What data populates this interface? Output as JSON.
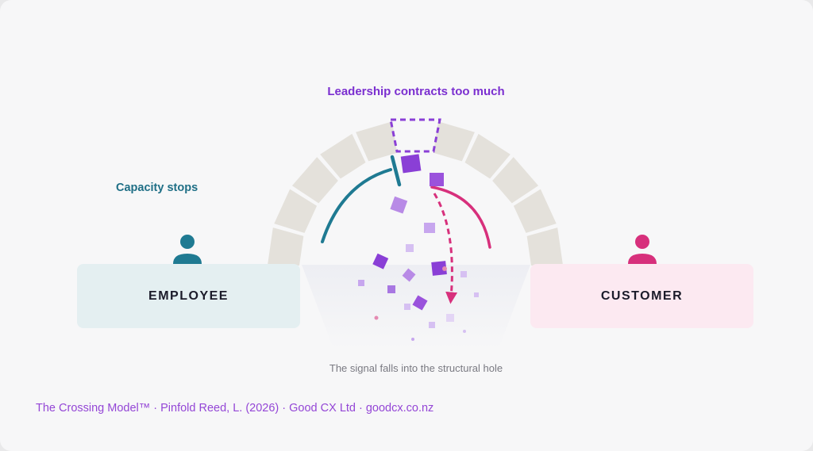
{
  "labels": {
    "leadership": "Leadership contracts too much",
    "capacity": "Capacity stops",
    "employee": "EMPLOYEE",
    "customer": "CUSTOMER",
    "signal_caption": "The signal falls into the structural hole",
    "footer": "The Crossing Model™ · Pinfold Reed, L. (2026) · Good CX Ltd · goodcx.co.nz"
  },
  "colors": {
    "background": "#f7f7f8",
    "arch_stone": "#e4e1db",
    "teal": "#1f7a92",
    "magenta": "#d7307c",
    "purple": "#8a3fd6",
    "employee_box": "#e4eff1",
    "customer_box": "#fce9f1"
  },
  "icons": {
    "employee": "person-icon",
    "customer": "person-icon"
  }
}
